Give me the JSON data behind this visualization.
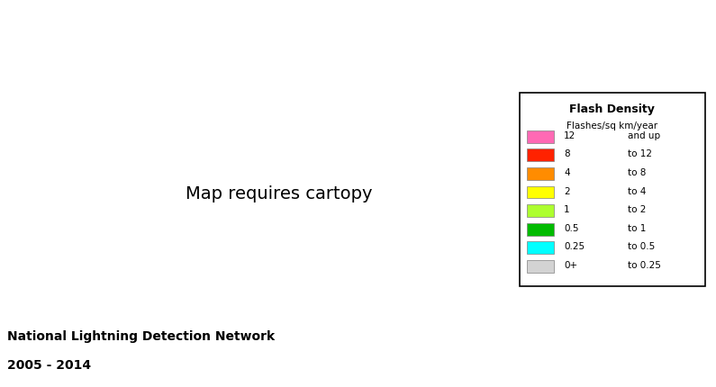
{
  "title_line1": "National Lightning Detection Network",
  "title_line2": "2005 - 2014",
  "legend_title": "Flash Density",
  "legend_subtitle": "Flashes/sq km/year",
  "legend_entries": [
    {
      "label": "12    and up",
      "color": "#FF69B4"
    },
    {
      "label": "8    to 12",
      "color": "#FF2200"
    },
    {
      "label": "4    to 8",
      "color": "#FF8C00"
    },
    {
      "label": "2    to 4",
      "color": "#FFFF00"
    },
    {
      "label": "1    to 2",
      "color": "#ADFF2F"
    },
    {
      "label": "0.5    to 1",
      "color": "#00BB00"
    },
    {
      "label": "0.25  to  0.5",
      "color": "#00FFFF"
    },
    {
      "label": "0+     to 0.25",
      "color": "#D3D3D3"
    }
  ],
  "legend_colors": [
    "#FF69B4",
    "#FF2200",
    "#FF8C00",
    "#FFFF00",
    "#ADFF2F",
    "#00BB00",
    "#00FFFF",
    "#D3D3D3"
  ],
  "legend_labels_left": [
    "12",
    "8",
    "4",
    "2",
    "1",
    "0.5",
    "0.25",
    "0+"
  ],
  "legend_labels_right": [
    "and up",
    "to 12",
    "to 8",
    "to 4",
    "to 2",
    "to 1",
    "to 0.5",
    "to 0.25"
  ],
  "background_color": "#FFFFFF",
  "map_bg": "#FFFFFF",
  "figsize": [
    7.95,
    4.31
  ],
  "dpi": 100
}
